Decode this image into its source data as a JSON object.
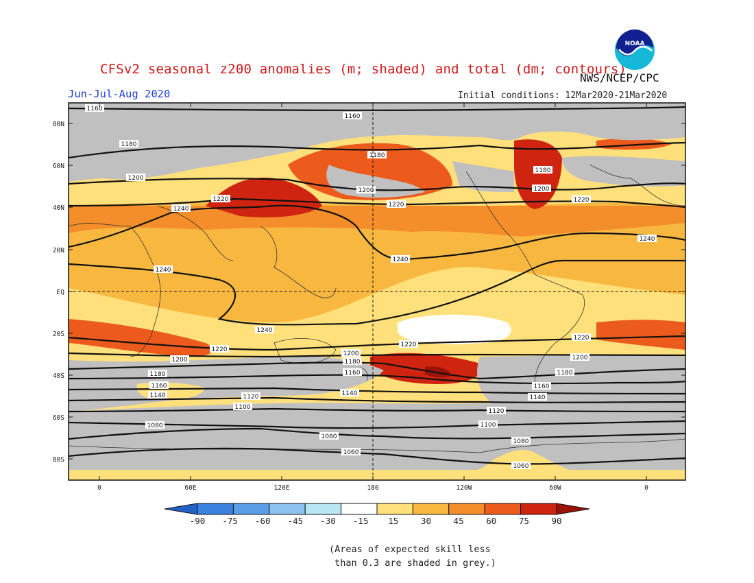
{
  "title": "CFSv2 seasonal z200 anomalies (m; shaded) and total (dm; contours)",
  "agency": "NWS/NCEP/CPC",
  "season": "Jun-Jul-Aug 2020",
  "initial_conditions": "Initial conditions: 12Mar2020-21Mar2020",
  "footnote": "(Areas of expected skill less\n than 0.3 are shaded in grey.)",
  "lat_labels": [
    "80N",
    "60N",
    "40N",
    "20N",
    "EQ",
    "20S",
    "40S",
    "60S",
    "80S"
  ],
  "lon_labels": [
    "0",
    "60E",
    "120E",
    "180",
    "120W",
    "60W",
    "0"
  ],
  "colorbar": {
    "ticks": [
      "-90",
      "-75",
      "-60",
      "-45",
      "-30",
      "-15",
      "15",
      "30",
      "45",
      "60",
      "75",
      "90"
    ],
    "colors": [
      "#2262c8",
      "#3a82e0",
      "#5a9ee8",
      "#8cc3f0",
      "#b8e6f2",
      "#ffffff",
      "#ffe07a",
      "#f8b840",
      "#f48e2a",
      "#ec5a1c",
      "#cf2410",
      "#9a1208"
    ]
  },
  "contour_labels": [
    "1160",
    "1180",
    "1200",
    "1220",
    "1240",
    "1140",
    "1120",
    "1100",
    "1080",
    "1060"
  ],
  "colors": {
    "skill_grey": "#c0c0c0",
    "title_red": "#d01818",
    "season_blue": "#1c3fd0"
  },
  "icons": {
    "logo": "noaa-logo"
  }
}
